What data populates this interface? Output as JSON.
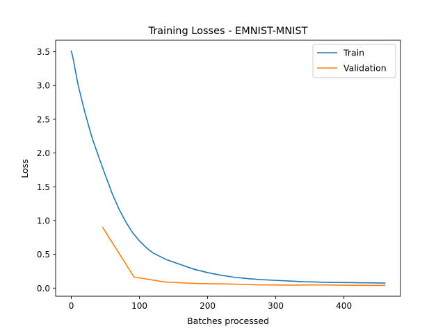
{
  "chart_data": {
    "type": "line",
    "title": "Training Losses - EMNIST-MNIST",
    "xlabel": "Batches processed",
    "ylabel": "Loss",
    "xlim": [
      -23,
      483
    ],
    "ylim": [
      -0.12,
      3.67
    ],
    "xticks": [
      0,
      100,
      200,
      300,
      400
    ],
    "yticks": [
      0.0,
      0.5,
      1.0,
      1.5,
      2.0,
      2.5,
      3.0,
      3.5
    ],
    "grid": false,
    "legend_position": "top-right",
    "series": [
      {
        "name": "Train",
        "color": "#1f77b4",
        "x": [
          0,
          2,
          4,
          6,
          8,
          10,
          15,
          20,
          25,
          30,
          40,
          50,
          60,
          70,
          80,
          90,
          100,
          110,
          120,
          140,
          160,
          180,
          200,
          220,
          240,
          260,
          280,
          300,
          320,
          340,
          360,
          380,
          400,
          420,
          440,
          460
        ],
        "y": [
          3.51,
          3.43,
          3.33,
          3.22,
          3.11,
          3.01,
          2.8,
          2.6,
          2.42,
          2.24,
          1.95,
          1.67,
          1.4,
          1.17,
          0.98,
          0.82,
          0.7,
          0.6,
          0.52,
          0.42,
          0.35,
          0.28,
          0.23,
          0.19,
          0.16,
          0.14,
          0.125,
          0.115,
          0.105,
          0.095,
          0.09,
          0.085,
          0.082,
          0.08,
          0.078,
          0.075
        ]
      },
      {
        "name": "Validation",
        "color": "#ff7f0e",
        "x": [
          46,
          92,
          138,
          184,
          230,
          276,
          322,
          368,
          414,
          460
        ],
        "y": [
          0.9,
          0.165,
          0.09,
          0.068,
          0.062,
          0.048,
          0.045,
          0.048,
          0.042,
          0.04
        ]
      }
    ]
  }
}
